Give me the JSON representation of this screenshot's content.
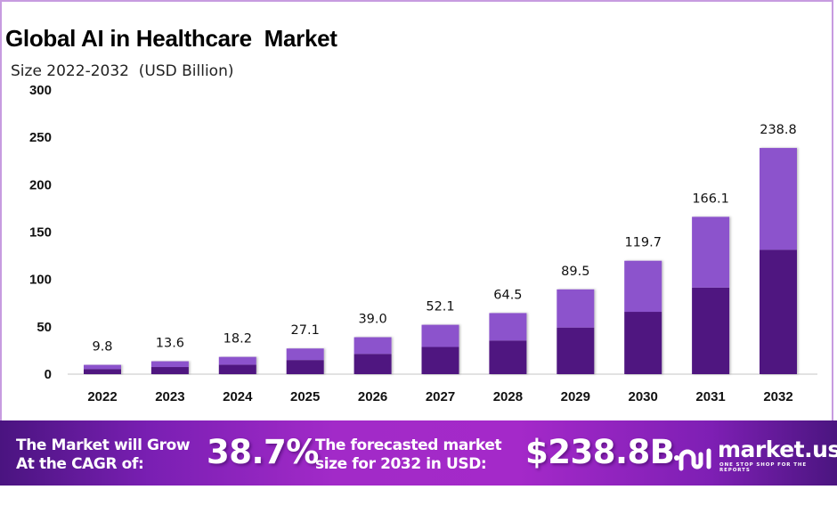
{
  "header": {
    "title": "Global AI in Healthcare  Market",
    "subtitle": "Size 2022-2032  (USD Billion)"
  },
  "colors": {
    "segment_dark": "#4f1780",
    "segment_light": "#8c52cc",
    "frame": "#c79be0"
  },
  "chart_data": {
    "type": "bar",
    "stacked": true,
    "title": "Global AI in Healthcare  Market",
    "subtitle": "Size 2022-2032  (USD Billion)",
    "xlabel": "",
    "ylabel": "",
    "ylim": [
      0,
      300
    ],
    "yticks": [
      0,
      50,
      100,
      150,
      200,
      250,
      300
    ],
    "grid": false,
    "legend": "none",
    "categories": [
      "2022",
      "2023",
      "2024",
      "2025",
      "2026",
      "2027",
      "2028",
      "2029",
      "2030",
      "2031",
      "2032"
    ],
    "totals": [
      9.8,
      13.6,
      18.2,
      27.1,
      39.0,
      52.1,
      64.5,
      89.5,
      119.7,
      166.1,
      238.8
    ],
    "data_labels": [
      "9.8",
      "13.6",
      "18.2",
      "27.1",
      "39.0",
      "52.1",
      "64.5",
      "89.5",
      "119.7",
      "166.1",
      "238.8"
    ],
    "series": [
      {
        "name": "segment-1",
        "color": "#4f1780",
        "values": [
          5.4,
          7.5,
          10.0,
          14.9,
          21.4,
          28.7,
          35.5,
          49.2,
          65.8,
          91.4,
          131.3
        ]
      },
      {
        "name": "segment-2",
        "color": "#8c52cc",
        "values": [
          4.4,
          6.1,
          8.2,
          12.2,
          17.6,
          23.4,
          29.0,
          40.3,
          53.9,
          74.7,
          107.5
        ]
      }
    ]
  },
  "banner": {
    "cagr_line1": "The Market will Grow",
    "cagr_line2": "At the CAGR of:",
    "cagr_value": "38.7%",
    "forecast_line1": "The forecasted market",
    "forecast_line2": "size for 2032 in USD:",
    "forecast_value": "$238.8B",
    "logo_name": "market.us",
    "logo_tagline": "ONE STOP SHOP FOR THE REPORTS"
  }
}
